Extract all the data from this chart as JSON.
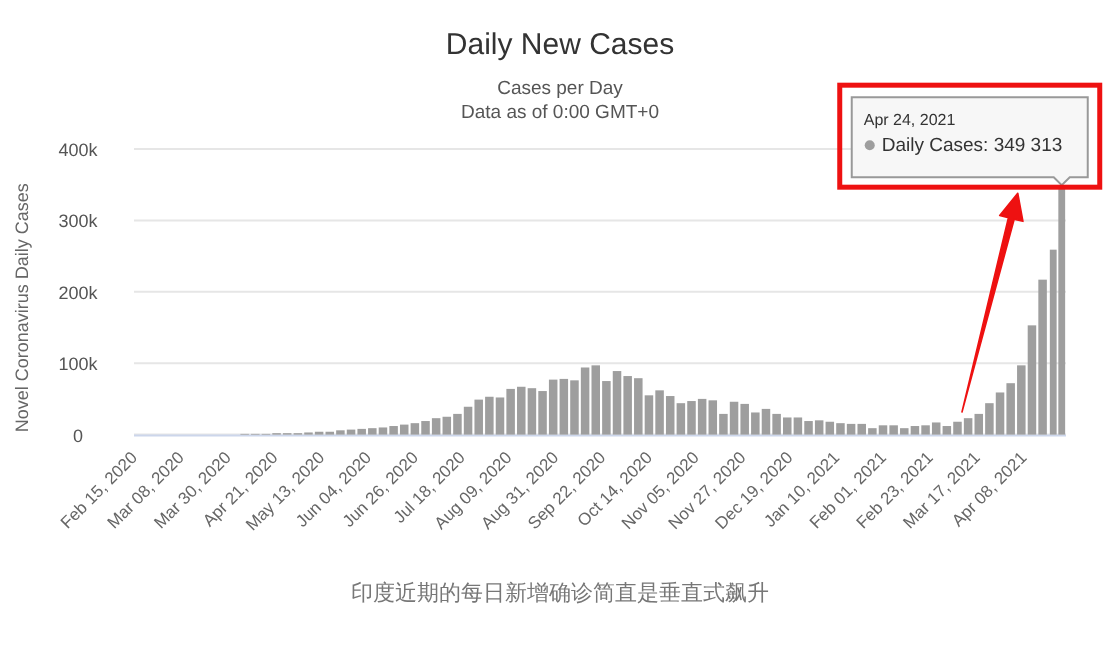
{
  "chart_data": {
    "type": "bar",
    "title": "Daily New Cases",
    "subtitle": "Cases per Day\nData as of 0:00 GMT+0",
    "ylabel": "Novel Coronavirus Daily Cases",
    "x": [
      "2020-02-15",
      "2020-02-20",
      "2020-02-25",
      "2020-03-01",
      "2020-03-06",
      "2020-03-11",
      "2020-03-16",
      "2020-03-21",
      "2020-03-26",
      "2020-03-31",
      "2020-04-05",
      "2020-04-10",
      "2020-04-15",
      "2020-04-20",
      "2020-04-25",
      "2020-04-30",
      "2020-05-05",
      "2020-05-10",
      "2020-05-15",
      "2020-05-20",
      "2020-05-25",
      "2020-05-30",
      "2020-06-04",
      "2020-06-09",
      "2020-06-14",
      "2020-06-19",
      "2020-06-24",
      "2020-06-29",
      "2020-07-04",
      "2020-07-09",
      "2020-07-14",
      "2020-07-19",
      "2020-07-24",
      "2020-07-29",
      "2020-08-03",
      "2020-08-08",
      "2020-08-13",
      "2020-08-18",
      "2020-08-23",
      "2020-08-28",
      "2020-09-02",
      "2020-09-07",
      "2020-09-12",
      "2020-09-17",
      "2020-09-22",
      "2020-09-27",
      "2020-10-02",
      "2020-10-07",
      "2020-10-12",
      "2020-10-17",
      "2020-10-22",
      "2020-10-27",
      "2020-11-01",
      "2020-11-06",
      "2020-11-11",
      "2020-11-16",
      "2020-11-21",
      "2020-11-26",
      "2020-12-01",
      "2020-12-06",
      "2020-12-11",
      "2020-12-16",
      "2020-12-21",
      "2020-12-26",
      "2020-12-31",
      "2021-01-05",
      "2021-01-10",
      "2021-01-15",
      "2021-01-20",
      "2021-01-25",
      "2021-01-30",
      "2021-02-04",
      "2021-02-09",
      "2021-02-14",
      "2021-02-19",
      "2021-02-24",
      "2021-03-01",
      "2021-03-06",
      "2021-03-11",
      "2021-03-16",
      "2021-03-21",
      "2021-03-26",
      "2021-03-31",
      "2021-04-05",
      "2021-04-10",
      "2021-04-15",
      "2021-04-20",
      "2021-04-24"
    ],
    "values": [
      0,
      0,
      0,
      0,
      0,
      0,
      0,
      0,
      0,
      0,
      1000,
      1000,
      1000,
      2000,
      2000,
      2000,
      3000,
      4000,
      4000,
      6000,
      7000,
      8000,
      9000,
      10000,
      12000,
      14000,
      16000,
      19000,
      23000,
      25000,
      29000,
      39000,
      49000,
      53000,
      52000,
      64000,
      67000,
      65000,
      61000,
      77000,
      78000,
      76000,
      94000,
      97000,
      75000,
      89000,
      82000,
      79000,
      55000,
      62000,
      54000,
      44000,
      47000,
      50000,
      48000,
      29000,
      46000,
      43000,
      31000,
      36000,
      29000,
      24000,
      24000,
      19000,
      20000,
      18000,
      16000,
      15000,
      15000,
      9000,
      13000,
      13000,
      9000,
      12000,
      13000,
      17000,
      12000,
      18000,
      23000,
      29000,
      44000,
      59000,
      72000,
      97000,
      153000,
      217000,
      259000,
      349313
    ],
    "color": "#9e9e9e",
    "xlim": [
      "2020-02-13",
      "2021-04-26"
    ],
    "xticks": [
      {
        "value": "2020-02-15",
        "label": "Feb 15, 2020"
      },
      {
        "value": "2020-03-08",
        "label": "Mar 08, 2020"
      },
      {
        "value": "2020-03-30",
        "label": "Mar 30, 2020"
      },
      {
        "value": "2020-04-21",
        "label": "Apr 21, 2020"
      },
      {
        "value": "2020-05-13",
        "label": "May 13, 2020"
      },
      {
        "value": "2020-06-04",
        "label": "Jun 04, 2020"
      },
      {
        "value": "2020-06-26",
        "label": "Jun 26, 2020"
      },
      {
        "value": "2020-07-18",
        "label": "Jul 18, 2020"
      },
      {
        "value": "2020-08-09",
        "label": "Aug 09, 2020"
      },
      {
        "value": "2020-08-31",
        "label": "Aug 31, 2020"
      },
      {
        "value": "2020-09-22",
        "label": "Sep 22, 2020"
      },
      {
        "value": "2020-10-14",
        "label": "Oct 14, 2020"
      },
      {
        "value": "2020-11-05",
        "label": "Nov 05, 2020"
      },
      {
        "value": "2020-11-27",
        "label": "Nov 27, 2020"
      },
      {
        "value": "2020-12-19",
        "label": "Dec 19, 2020"
      },
      {
        "value": "2021-01-10",
        "label": "Jan 10, 2021"
      },
      {
        "value": "2021-02-01",
        "label": "Feb 01, 2021"
      },
      {
        "value": "2021-02-23",
        "label": "Feb 23, 2021"
      },
      {
        "value": "2021-03-17",
        "label": "Mar 17, 2021"
      },
      {
        "value": "2021-04-08",
        "label": "Apr 08, 2021"
      }
    ],
    "ylim": [
      0,
      400000
    ],
    "yticks": [
      0,
      {
        "value": 100000,
        "label": "100k"
      },
      {
        "value": 200000,
        "label": "200k"
      },
      {
        "value": 300000,
        "label": "300k"
      },
      {
        "value": 400000,
        "label": "400k"
      }
    ],
    "grid": "y",
    "annotations": [
      "Apr 24, 2021",
      "Daily Cases: 349 313",
      "印度近期的每日新增确诊简直是垂直式飙升"
    ]
  }
}
